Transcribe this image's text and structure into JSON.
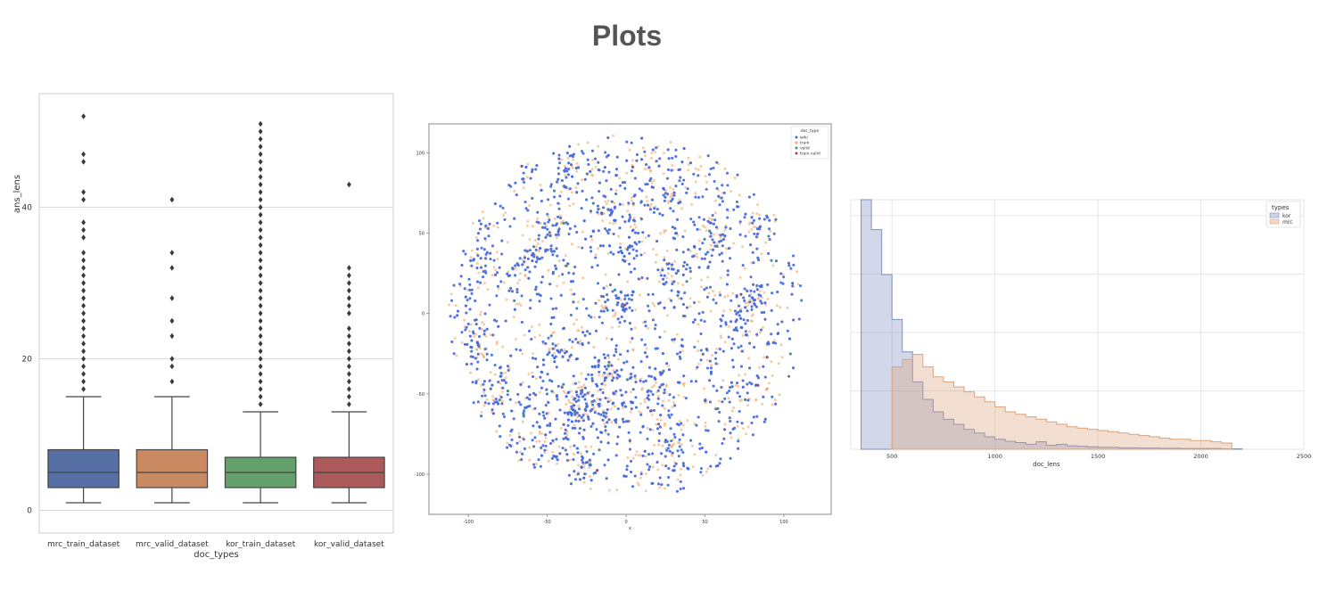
{
  "page": {
    "title": "Plots"
  },
  "colors": {
    "box_series": [
      "#5670a6",
      "#c98a62",
      "#64a06c",
      "#ad5a5a"
    ],
    "tsne_series": [
      "#4169e1",
      "#f0a35a",
      "#3fa05a",
      "#c0392b"
    ],
    "hist_kor": "#7f8fbf",
    "hist_mrc": "#dba27a",
    "grid": "#d9d9d9",
    "text": "#333333"
  },
  "chart_data": [
    {
      "type": "box",
      "title": "",
      "xlabel": "doc_types",
      "ylabel": "ans_lens",
      "ylim": [
        -3,
        55
      ],
      "yticks": [
        0,
        20,
        40
      ],
      "grid": true,
      "categories": [
        "mrc_train_dataset",
        "mrc_valid_dataset",
        "kor_train_dataset",
        "kor_valid_dataset"
      ],
      "boxes": [
        {
          "whisker_low": 1,
          "q1": 3,
          "median": 5,
          "q3": 8,
          "whisker_high": 15,
          "outliers": [
            16,
            17,
            18,
            19,
            20,
            21,
            22,
            23,
            24,
            25,
            26,
            27,
            28,
            29,
            30,
            31,
            32,
            33,
            34,
            36,
            37,
            38,
            41,
            42,
            46,
            47,
            52
          ]
        },
        {
          "whisker_low": 1,
          "q1": 3,
          "median": 5,
          "q3": 8,
          "whisker_high": 15,
          "outliers": [
            17,
            19,
            20,
            23,
            25,
            28,
            32,
            34,
            41
          ]
        },
        {
          "whisker_low": 1,
          "q1": 3,
          "median": 5,
          "q3": 7,
          "whisker_high": 13,
          "outliers": [
            14,
            15,
            16,
            17,
            18,
            19,
            20,
            21,
            22,
            23,
            24,
            25,
            26,
            27,
            28,
            29,
            30,
            31,
            32,
            33,
            34,
            35,
            36,
            37,
            38,
            39,
            40,
            41,
            42,
            43,
            44,
            45,
            46,
            47,
            48,
            49,
            50,
            51
          ]
        },
        {
          "whisker_low": 1,
          "q1": 3,
          "median": 5,
          "q3": 7,
          "whisker_high": 13,
          "outliers": [
            14,
            15,
            16,
            17,
            18,
            19,
            20,
            21,
            22,
            23,
            24,
            26,
            27,
            28,
            29,
            30,
            31,
            32,
            43
          ]
        }
      ]
    },
    {
      "type": "scatter",
      "title": "",
      "xlabel": "x",
      "ylabel": "",
      "xlim": [
        -125,
        130
      ],
      "ylim": [
        -125,
        118
      ],
      "xticks": [
        -100,
        -50,
        0,
        50,
        100
      ],
      "yticks": [
        100,
        50,
        0,
        -50,
        -100
      ],
      "legend": {
        "title": "doc_type",
        "placement": "top-right",
        "entries": [
          "wiki",
          "train",
          "valid",
          "train.valid"
        ]
      },
      "series_sizes": {
        "wiki": 3200,
        "train": 1500,
        "valid": 25,
        "train.valid": 8
      }
    },
    {
      "type": "histogram",
      "title": "",
      "xlabel": "doc_lens",
      "ylabel": "",
      "xlim": [
        300,
        2500
      ],
      "ylim": [
        0,
        1
      ],
      "xticks": [
        500,
        1000,
        1500,
        2000,
        2500
      ],
      "grid": true,
      "legend": {
        "title": "types",
        "placement": "top-right",
        "entries": [
          "kor",
          "mrc"
        ]
      },
      "bin_width": 50,
      "series": [
        {
          "name": "kor",
          "start": 350,
          "values": [
            1.0,
            0.88,
            0.7,
            0.52,
            0.39,
            0.27,
            0.2,
            0.15,
            0.12,
            0.1,
            0.08,
            0.065,
            0.05,
            0.04,
            0.032,
            0.027,
            0.02,
            0.03,
            0.016,
            0.02,
            0.014,
            0.012,
            0.01,
            0.008,
            0.008,
            0.006,
            0.006,
            0.005,
            0.005,
            0.004,
            0.004,
            0.003,
            0.003,
            0.003,
            0.003,
            0.002,
            0.002
          ]
        },
        {
          "name": "mrc",
          "start": 500,
          "values": [
            0.33,
            0.36,
            0.38,
            0.33,
            0.29,
            0.27,
            0.25,
            0.23,
            0.21,
            0.19,
            0.17,
            0.15,
            0.14,
            0.13,
            0.12,
            0.11,
            0.1,
            0.09,
            0.085,
            0.08,
            0.075,
            0.07,
            0.065,
            0.06,
            0.055,
            0.05,
            0.045,
            0.04,
            0.04,
            0.035,
            0.035,
            0.03,
            0.025
          ]
        }
      ]
    }
  ]
}
